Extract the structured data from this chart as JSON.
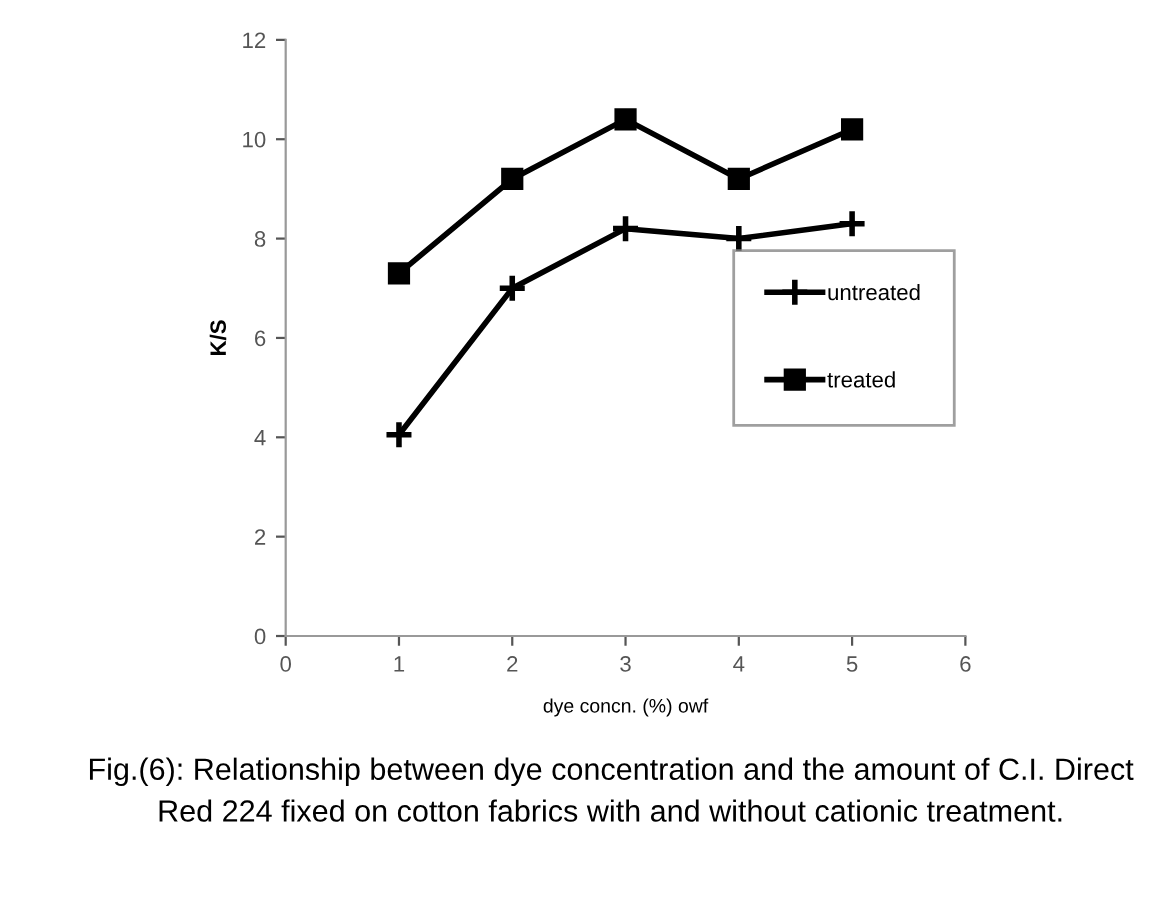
{
  "chart_data": {
    "type": "line",
    "xlabel": "dye concn. (%) owf",
    "ylabel": "K/S",
    "x": [
      1,
      2,
      3,
      4,
      5
    ],
    "series": [
      {
        "name": "untreated",
        "color": "#000000",
        "values": [
          4.05,
          7.0,
          8.2,
          8.0,
          8.3
        ],
        "marker": "cross"
      },
      {
        "name": "treated",
        "color": "#000000",
        "values": [
          7.3,
          9.2,
          10.4,
          9.2,
          10.2
        ],
        "marker": "square"
      }
    ],
    "xlim": [
      0,
      6
    ],
    "xticks": [
      0,
      1,
      2,
      3,
      4,
      5,
      6
    ],
    "ylim": [
      0,
      12
    ],
    "yticks": [
      0,
      2,
      4,
      6,
      8,
      10,
      12
    ],
    "grid": false,
    "legend": "right",
    "line_style": "solid",
    "annotations": [
      "Fig.(6): Relationship between dye concentration and the amount of C.I. Direct Red 224 fixed on cotton fabrics with and without cationic treatment."
    ]
  }
}
